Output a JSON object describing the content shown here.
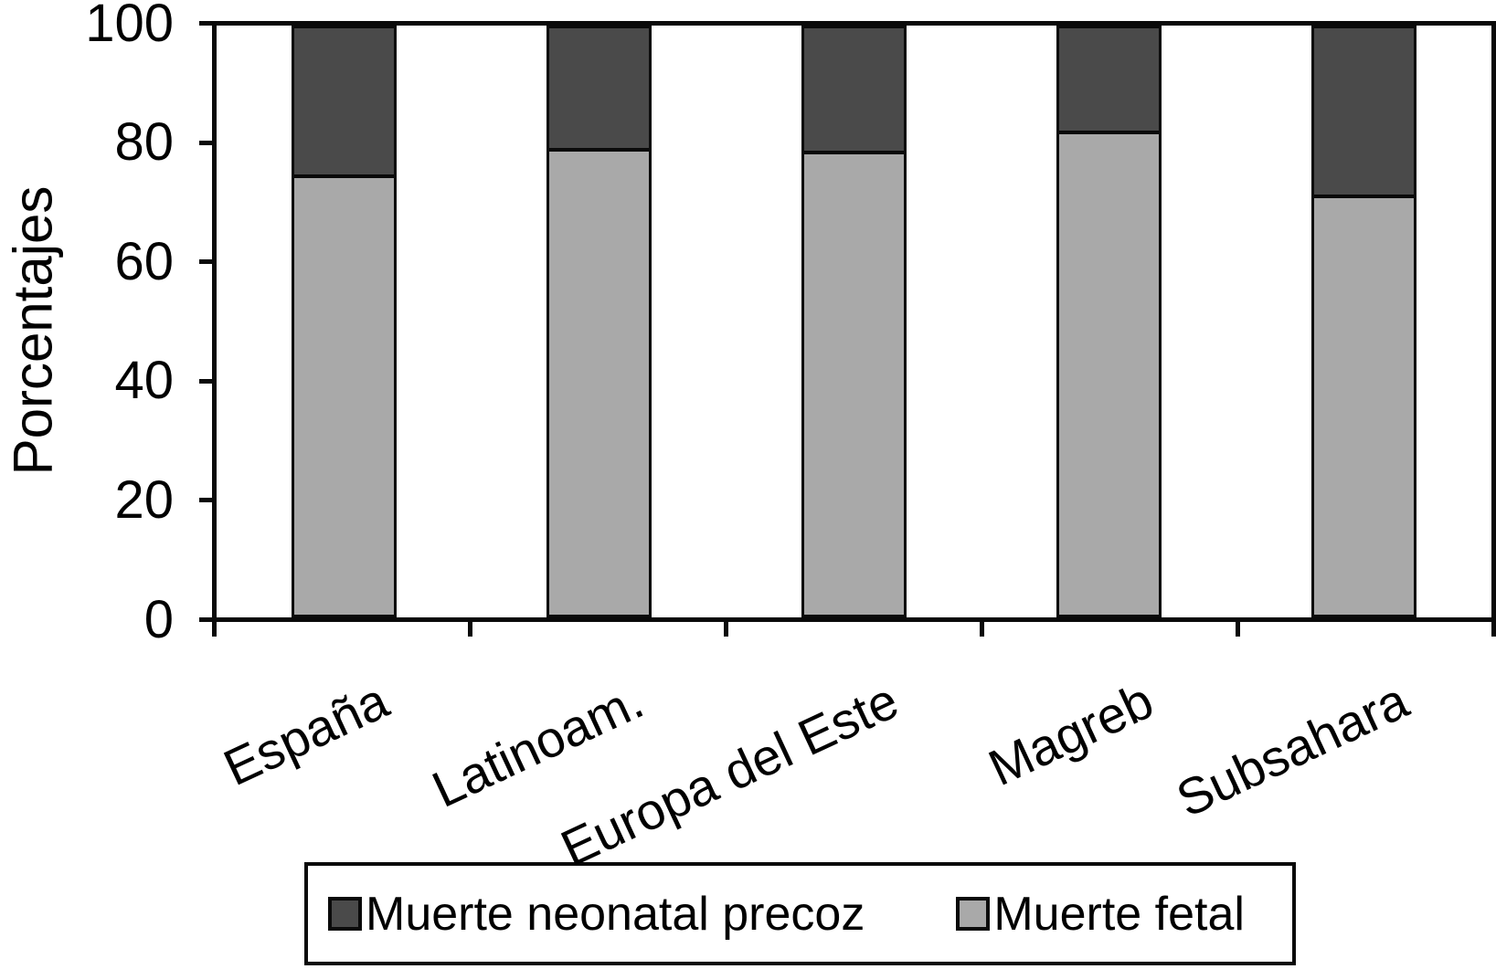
{
  "chart_data": {
    "type": "bar",
    "variant": "stacked-100-percent",
    "title": "",
    "xlabel": "",
    "ylabel": "Porcentajes",
    "ylim": [
      0,
      100
    ],
    "yticks": [
      0,
      20,
      40,
      60,
      80,
      100
    ],
    "grid": false,
    "legend_position": "bottom-boxed",
    "categories": [
      "España",
      "Latinoam.",
      "Europa del Este",
      "Magreb",
      "Subsahara"
    ],
    "series": [
      {
        "name": "Muerte neonatal precoz",
        "color": "#4a4a4a",
        "stack": "top",
        "values": [
          25.5,
          21.0,
          21.5,
          18.0,
          29.0
        ]
      },
      {
        "name": "Muerte fetal",
        "color": "#a9a9a9",
        "stack": "bottom",
        "values": [
          74.5,
          79.0,
          78.5,
          82.0,
          71.0
        ]
      }
    ],
    "colors": {
      "axis": "#0a0a0a",
      "background": "#ffffff"
    }
  }
}
